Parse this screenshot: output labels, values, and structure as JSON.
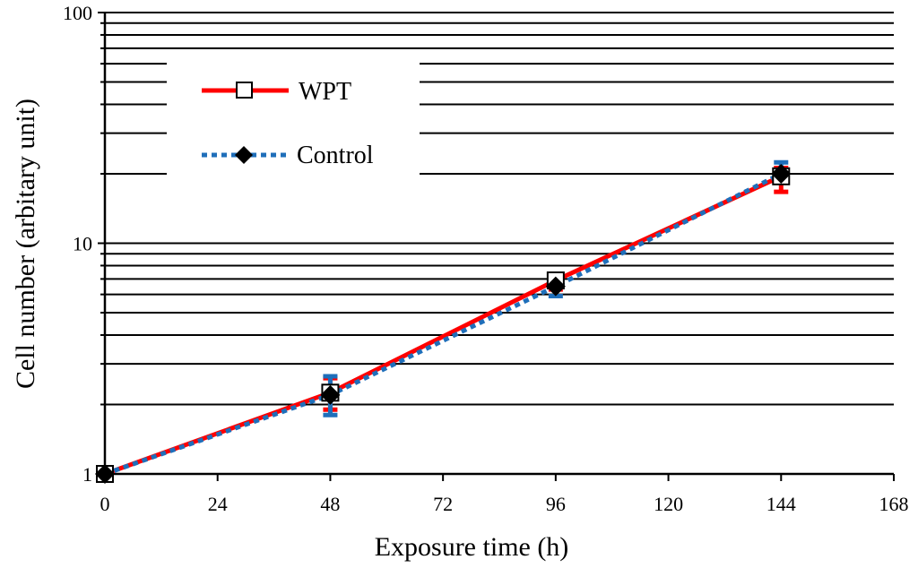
{
  "chart_data": {
    "type": "line",
    "title": "",
    "xlabel": "Exposure time (h)",
    "ylabel": "Cell number (arbitary unit)",
    "xlim": [
      0,
      168
    ],
    "ylim": [
      1,
      100
    ],
    "yscale": "log",
    "grid": "horizontal major and minor lines",
    "x_ticks": [
      0,
      24,
      48,
      72,
      96,
      120,
      144,
      168
    ],
    "x_tick_labels": [
      "0",
      "24",
      "48",
      "72",
      "96",
      "120",
      "144",
      "168"
    ],
    "y_ticks": [
      1,
      10,
      100
    ],
    "y_tick_labels": [
      "1",
      "10",
      "100"
    ],
    "legend_position": "top-left",
    "series": [
      {
        "name": "WPT",
        "color": "#ff0000",
        "line_style": "solid",
        "marker": "open-square",
        "x": [
          0,
          48,
          96,
          144
        ],
        "y": [
          1.0,
          2.25,
          6.9,
          19.5
        ],
        "error_low": [
          0.0,
          0.35,
          0.6,
          2.8
        ],
        "error_high": [
          0.0,
          0.35,
          0.4,
          1.7
        ]
      },
      {
        "name": "Control",
        "color": "#1f6fba",
        "line_style": "dotted",
        "marker": "filled-diamond",
        "x": [
          0,
          48,
          96,
          144
        ],
        "y": [
          1.0,
          2.2,
          6.5,
          20.0
        ],
        "error_low": [
          0.0,
          0.4,
          0.6,
          1.6
        ],
        "error_high": [
          0.0,
          0.45,
          0.5,
          2.4
        ]
      }
    ]
  }
}
